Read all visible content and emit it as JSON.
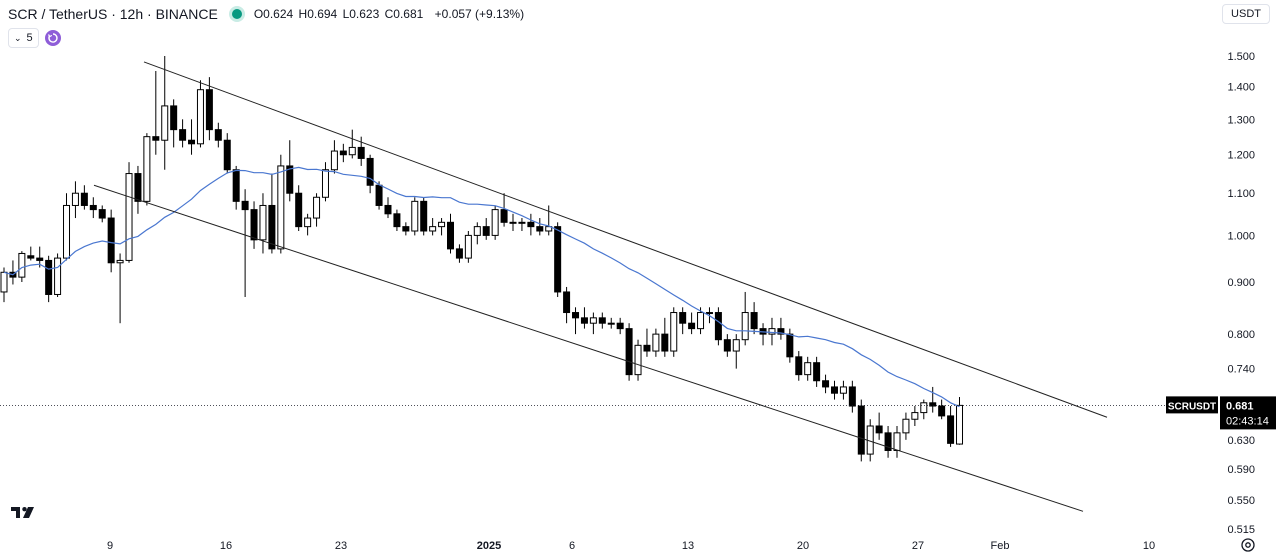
{
  "header": {
    "pair": "SCR / TetherUS · 12h · BINANCE",
    "open": "O0.624",
    "high": "H0.694",
    "low": "L0.623",
    "close": "C0.681",
    "change": "+0.057 (+9.13%)"
  },
  "indicator_toggle": "5",
  "currency": "USDT",
  "price_label": {
    "symbol": "SCRUSDT",
    "value": "0.681",
    "countdown": "02:43:14"
  },
  "colors": {
    "up": "#ffffff",
    "down": "#000000",
    "ma": "#4a77d0",
    "channel": "#222222",
    "status": "#089981"
  },
  "chart_data": {
    "type": "candlestick",
    "y_scale": "log",
    "y_ticks": [
      "1.500",
      "1.400",
      "1.300",
      "1.200",
      "1.100",
      "1.000",
      "0.900",
      "0.800",
      "0.740",
      "0.630",
      "0.590",
      "0.550",
      "0.515"
    ],
    "x_ticks": [
      "9",
      "16",
      "23",
      "2025",
      "6",
      "13",
      "20",
      "27",
      "Feb",
      "10"
    ],
    "last_price": 0.681,
    "candles": [
      [
        0.88,
        0.93,
        0.86,
        0.92
      ],
      [
        0.92,
        0.945,
        0.895,
        0.91
      ],
      [
        0.91,
        0.965,
        0.9,
        0.96
      ],
      [
        0.955,
        0.975,
        0.945,
        0.95
      ],
      [
        0.95,
        0.975,
        0.93,
        0.945
      ],
      [
        0.945,
        0.955,
        0.86,
        0.875
      ],
      [
        0.875,
        0.96,
        0.87,
        0.95
      ],
      [
        0.95,
        1.1,
        0.945,
        1.07
      ],
      [
        1.07,
        1.13,
        1.04,
        1.1
      ],
      [
        1.1,
        1.12,
        1.06,
        1.07
      ],
      [
        1.07,
        1.09,
        1.04,
        1.06
      ],
      [
        1.06,
        1.07,
        1.03,
        1.04
      ],
      [
        1.04,
        1.06,
        0.92,
        0.94
      ],
      [
        0.94,
        0.96,
        0.82,
        0.945
      ],
      [
        0.945,
        1.18,
        0.94,
        1.15
      ],
      [
        1.15,
        1.17,
        1.05,
        1.08
      ],
      [
        1.08,
        1.26,
        1.07,
        1.25
      ],
      [
        1.25,
        1.45,
        1.2,
        1.24
      ],
      [
        1.24,
        1.5,
        1.16,
        1.34
      ],
      [
        1.34,
        1.36,
        1.22,
        1.27
      ],
      [
        1.27,
        1.3,
        1.22,
        1.24
      ],
      [
        1.24,
        1.3,
        1.2,
        1.23
      ],
      [
        1.23,
        1.42,
        1.22,
        1.39
      ],
      [
        1.39,
        1.43,
        1.24,
        1.27
      ],
      [
        1.27,
        1.29,
        1.22,
        1.24
      ],
      [
        1.24,
        1.26,
        1.15,
        1.16
      ],
      [
        1.16,
        1.17,
        1.06,
        1.08
      ],
      [
        1.08,
        1.11,
        0.87,
        1.06
      ],
      [
        1.06,
        1.08,
        0.97,
        0.99
      ],
      [
        0.99,
        1.1,
        0.96,
        1.07
      ],
      [
        1.07,
        1.15,
        0.96,
        0.97
      ],
      [
        0.97,
        1.2,
        0.96,
        1.17
      ],
      [
        1.17,
        1.24,
        1.08,
        1.1
      ],
      [
        1.1,
        1.12,
        1.01,
        1.02
      ],
      [
        1.02,
        1.05,
        1.0,
        1.04
      ],
      [
        1.04,
        1.1,
        1.02,
        1.09
      ],
      [
        1.09,
        1.18,
        1.08,
        1.16
      ],
      [
        1.16,
        1.24,
        1.15,
        1.21
      ],
      [
        1.21,
        1.23,
        1.18,
        1.2
      ],
      [
        1.2,
        1.27,
        1.19,
        1.22
      ],
      [
        1.22,
        1.25,
        1.17,
        1.19
      ],
      [
        1.19,
        1.2,
        1.1,
        1.12
      ],
      [
        1.12,
        1.13,
        1.06,
        1.07
      ],
      [
        1.07,
        1.09,
        1.04,
        1.05
      ],
      [
        1.05,
        1.06,
        1.01,
        1.02
      ],
      [
        1.02,
        1.03,
        1.0,
        1.01
      ],
      [
        1.01,
        1.09,
        1.0,
        1.08
      ],
      [
        1.08,
        1.09,
        1.0,
        1.01
      ],
      [
        1.01,
        1.04,
        1.0,
        1.02
      ],
      [
        1.02,
        1.04,
        1.0,
        1.03
      ],
      [
        1.03,
        1.05,
        0.96,
        0.97
      ],
      [
        0.97,
        0.98,
        0.94,
        0.95
      ],
      [
        0.95,
        1.01,
        0.94,
        1.0
      ],
      [
        1.0,
        1.03,
        0.98,
        1.02
      ],
      [
        1.02,
        1.04,
        0.99,
        1.0
      ],
      [
        1.0,
        1.07,
        0.99,
        1.06
      ],
      [
        1.06,
        1.1,
        1.02,
        1.03
      ],
      [
        1.03,
        1.05,
        1.01,
        1.03
      ],
      [
        1.03,
        1.04,
        1.01,
        1.03
      ],
      [
        1.03,
        1.05,
        1.0,
        1.02
      ],
      [
        1.02,
        1.04,
        1.0,
        1.01
      ],
      [
        1.01,
        1.07,
        1.0,
        1.02
      ],
      [
        1.02,
        1.03,
        0.87,
        0.88
      ],
      [
        0.88,
        0.89,
        0.82,
        0.84
      ],
      [
        0.84,
        0.85,
        0.8,
        0.83
      ],
      [
        0.83,
        0.85,
        0.81,
        0.82
      ],
      [
        0.82,
        0.84,
        0.8,
        0.83
      ],
      [
        0.83,
        0.84,
        0.81,
        0.82
      ],
      [
        0.82,
        0.83,
        0.81,
        0.82
      ],
      [
        0.82,
        0.83,
        0.8,
        0.81
      ],
      [
        0.81,
        0.82,
        0.72,
        0.73
      ],
      [
        0.73,
        0.79,
        0.72,
        0.78
      ],
      [
        0.78,
        0.81,
        0.76,
        0.77
      ],
      [
        0.77,
        0.81,
        0.76,
        0.8
      ],
      [
        0.8,
        0.83,
        0.76,
        0.77
      ],
      [
        0.77,
        0.85,
        0.76,
        0.84
      ],
      [
        0.84,
        0.85,
        0.8,
        0.82
      ],
      [
        0.82,
        0.84,
        0.8,
        0.81
      ],
      [
        0.81,
        0.85,
        0.8,
        0.84
      ],
      [
        0.84,
        0.85,
        0.82,
        0.84
      ],
      [
        0.84,
        0.85,
        0.78,
        0.79
      ],
      [
        0.79,
        0.8,
        0.76,
        0.77
      ],
      [
        0.77,
        0.8,
        0.74,
        0.79
      ],
      [
        0.79,
        0.88,
        0.78,
        0.84
      ],
      [
        0.84,
        0.86,
        0.8,
        0.81
      ],
      [
        0.81,
        0.82,
        0.78,
        0.8
      ],
      [
        0.8,
        0.83,
        0.78,
        0.81
      ],
      [
        0.81,
        0.83,
        0.79,
        0.8
      ],
      [
        0.8,
        0.81,
        0.75,
        0.76
      ],
      [
        0.76,
        0.77,
        0.72,
        0.73
      ],
      [
        0.73,
        0.76,
        0.72,
        0.75
      ],
      [
        0.75,
        0.76,
        0.71,
        0.72
      ],
      [
        0.72,
        0.73,
        0.7,
        0.71
      ],
      [
        0.71,
        0.72,
        0.69,
        0.7
      ],
      [
        0.7,
        0.72,
        0.69,
        0.71
      ],
      [
        0.71,
        0.72,
        0.67,
        0.68
      ],
      [
        0.68,
        0.69,
        0.6,
        0.61
      ],
      [
        0.61,
        0.66,
        0.6,
        0.65
      ],
      [
        0.65,
        0.67,
        0.63,
        0.64
      ],
      [
        0.64,
        0.65,
        0.605,
        0.615
      ],
      [
        0.615,
        0.65,
        0.605,
        0.64
      ],
      [
        0.64,
        0.67,
        0.63,
        0.66
      ],
      [
        0.66,
        0.68,
        0.65,
        0.67
      ],
      [
        0.67,
        0.69,
        0.66,
        0.685
      ],
      [
        0.685,
        0.71,
        0.67,
        0.68
      ],
      [
        0.68,
        0.69,
        0.66,
        0.665
      ],
      [
        0.665,
        0.68,
        0.62,
        0.625
      ],
      [
        0.624,
        0.694,
        0.623,
        0.681
      ]
    ],
    "channel": [
      {
        "from": [
          0,
          1.48
        ],
        "to": [
          115,
          0.663
        ]
      },
      {
        "from": [
          0,
          1.12
        ],
        "to": [
          115,
          0.536
        ]
      }
    ]
  }
}
